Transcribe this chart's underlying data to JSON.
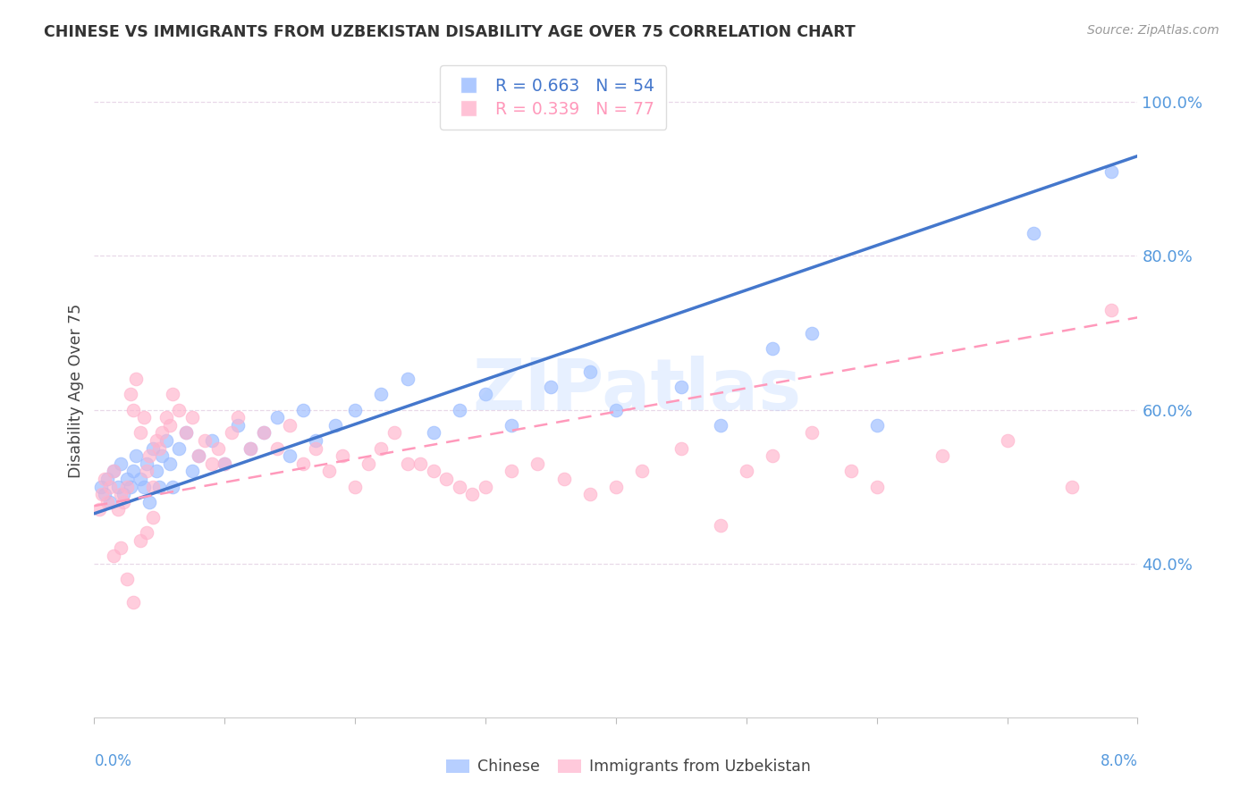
{
  "title": "CHINESE VS IMMIGRANTS FROM UZBEKISTAN DISABILITY AGE OVER 75 CORRELATION CHART",
  "source": "Source: ZipAtlas.com",
  "ylabel": "Disability Age Over 75",
  "xlim": [
    0.0,
    8.0
  ],
  "ylim": [
    20.0,
    105.0
  ],
  "yticks": [
    40.0,
    60.0,
    80.0,
    100.0
  ],
  "chinese_R": 0.663,
  "chinese_N": 54,
  "uzbek_R": 0.339,
  "uzbek_N": 77,
  "chinese_color": "#99BBFF",
  "uzbek_color": "#FFB3CC",
  "chinese_line_color": "#4477CC",
  "uzbek_line_color": "#FF99BB",
  "legend_label_chinese": "Chinese",
  "legend_label_uzbek": "Immigrants from Uzbekistan",
  "watermark": "ZIPatlas",
  "grid_color": "#E8D8E8",
  "axis_color": "#5599DD",
  "title_color": "#333333",
  "source_color": "#999999",
  "chinese_x": [
    0.05,
    0.08,
    0.1,
    0.12,
    0.15,
    0.18,
    0.2,
    0.22,
    0.25,
    0.28,
    0.3,
    0.32,
    0.35,
    0.38,
    0.4,
    0.42,
    0.45,
    0.48,
    0.5,
    0.52,
    0.55,
    0.58,
    0.6,
    0.65,
    0.7,
    0.75,
    0.8,
    0.9,
    1.0,
    1.1,
    1.2,
    1.3,
    1.4,
    1.5,
    1.6,
    1.7,
    1.85,
    2.0,
    2.2,
    2.4,
    2.6,
    2.8,
    3.0,
    3.2,
    3.5,
    3.8,
    4.0,
    4.5,
    4.8,
    5.2,
    5.5,
    6.0,
    7.2,
    7.8
  ],
  "chinese_y": [
    50,
    49,
    51,
    48,
    52,
    50,
    53,
    49,
    51,
    50,
    52,
    54,
    51,
    50,
    53,
    48,
    55,
    52,
    50,
    54,
    56,
    53,
    50,
    55,
    57,
    52,
    54,
    56,
    53,
    58,
    55,
    57,
    59,
    54,
    60,
    56,
    58,
    60,
    62,
    64,
    57,
    60,
    62,
    58,
    63,
    65,
    60,
    63,
    58,
    68,
    70,
    58,
    83,
    91
  ],
  "uzbek_x": [
    0.04,
    0.06,
    0.08,
    0.1,
    0.12,
    0.15,
    0.18,
    0.2,
    0.22,
    0.25,
    0.28,
    0.3,
    0.32,
    0.35,
    0.38,
    0.4,
    0.42,
    0.45,
    0.48,
    0.5,
    0.52,
    0.55,
    0.58,
    0.6,
    0.65,
    0.7,
    0.75,
    0.8,
    0.85,
    0.9,
    0.95,
    1.0,
    1.05,
    1.1,
    1.2,
    1.3,
    1.4,
    1.5,
    1.6,
    1.7,
    1.8,
    1.9,
    2.0,
    2.1,
    2.2,
    2.3,
    2.4,
    2.5,
    2.6,
    2.7,
    2.8,
    2.9,
    3.0,
    3.2,
    3.4,
    3.6,
    3.8,
    4.0,
    4.2,
    4.5,
    4.8,
    5.0,
    5.2,
    5.5,
    5.8,
    6.0,
    6.5,
    7.0,
    7.5,
    7.8,
    0.15,
    0.2,
    0.25,
    0.3,
    0.35,
    0.4,
    0.45
  ],
  "uzbek_y": [
    47,
    49,
    51,
    48,
    50,
    52,
    47,
    49,
    48,
    50,
    62,
    60,
    64,
    57,
    59,
    52,
    54,
    50,
    56,
    55,
    57,
    59,
    58,
    62,
    60,
    57,
    59,
    54,
    56,
    53,
    55,
    53,
    57,
    59,
    55,
    57,
    55,
    58,
    53,
    55,
    52,
    54,
    50,
    53,
    55,
    57,
    53,
    53,
    52,
    51,
    50,
    49,
    50,
    52,
    53,
    51,
    49,
    50,
    52,
    55,
    45,
    52,
    54,
    57,
    52,
    50,
    54,
    56,
    50,
    73,
    41,
    42,
    38,
    35,
    43,
    44,
    46
  ],
  "blue_line_x0": 0.0,
  "blue_line_y0": 46.5,
  "blue_line_x1": 8.0,
  "blue_line_y1": 93.0,
  "pink_line_x0": 0.0,
  "pink_line_y0": 47.5,
  "pink_line_x1": 8.0,
  "pink_line_y1": 72.0
}
